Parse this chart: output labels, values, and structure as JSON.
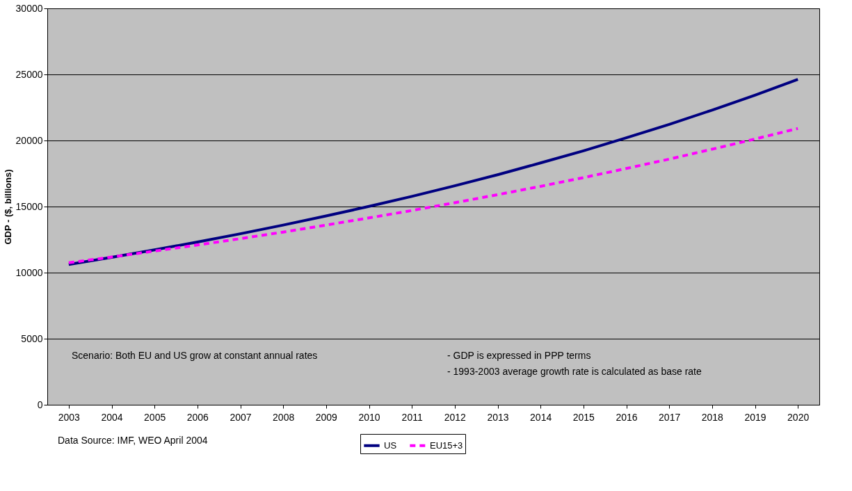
{
  "chart_data": {
    "type": "line",
    "ylabel": "GDP - ($, billions)",
    "categories": [
      "2003",
      "2004",
      "2005",
      "2006",
      "2007",
      "2008",
      "2009",
      "2010",
      "2011",
      "2012",
      "2013",
      "2014",
      "2015",
      "2016",
      "2017",
      "2018",
      "2019",
      "2020"
    ],
    "series": [
      {
        "name": "US",
        "color": "#000080",
        "line_style": "solid",
        "values": [
          10620,
          11160,
          11720,
          12320,
          12940,
          13600,
          14290,
          15010,
          15770,
          16570,
          17410,
          18300,
          19220,
          20200,
          21220,
          22300,
          23430,
          24620
        ]
      },
      {
        "name": "EU15+3",
        "color": "#ff00ff",
        "line_style": "dashed",
        "values": [
          10750,
          11180,
          11630,
          12090,
          12570,
          13070,
          13600,
          14140,
          14700,
          15290,
          15900,
          16530,
          17190,
          17880,
          18590,
          19340,
          20110,
          20910
        ]
      }
    ],
    "ylim": [
      0,
      30000
    ],
    "yticks": [
      0,
      5000,
      10000,
      15000,
      20000,
      25000,
      30000
    ],
    "grid": "y",
    "legend": "bottom",
    "marker": "none",
    "annotations": [
      "Scenario: Both EU and US grow at constant annual rates",
      "- GDP is expressed in PPP terms",
      "- 1993-2003 average growth rate is calculated as base rate",
      "Data Source: IMF, WEO April 2004"
    ]
  }
}
